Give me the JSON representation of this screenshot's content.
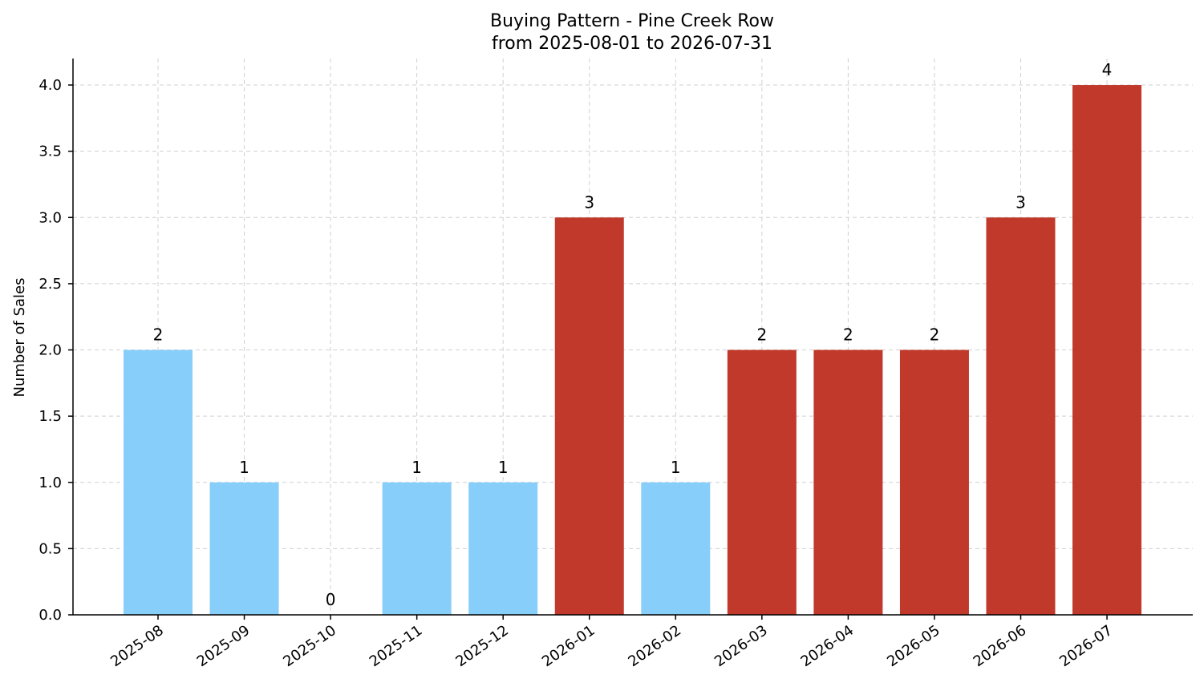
{
  "chart_data": {
    "type": "bar",
    "title": "Buying Pattern - Pine Creek Row",
    "subtitle": "from 2025-08-01 to 2026-07-31",
    "xlabel": "",
    "ylabel": "Number of Sales",
    "categories": [
      "2025-08",
      "2025-09",
      "2025-10",
      "2025-11",
      "2025-12",
      "2026-01",
      "2026-02",
      "2026-03",
      "2026-04",
      "2026-05",
      "2026-06",
      "2026-07"
    ],
    "values": [
      2,
      1,
      0,
      1,
      1,
      3,
      1,
      2,
      2,
      2,
      3,
      4
    ],
    "data_labels": [
      "2",
      "1",
      "0",
      "1",
      "1",
      "3",
      "1",
      "2",
      "2",
      "2",
      "3",
      "4"
    ],
    "bar_colors": [
      "#87CEFA",
      "#87CEFA",
      "#87CEFA",
      "#87CEFA",
      "#87CEFA",
      "#C0392B",
      "#87CEFA",
      "#C0392B",
      "#C0392B",
      "#C0392B",
      "#C0392B",
      "#C0392B"
    ],
    "ylim": [
      0,
      4.2
    ],
    "yticks": [
      0,
      0.5,
      1,
      1.5,
      2,
      2.5,
      3,
      3.5,
      4
    ],
    "ytick_labels": [
      "0.0",
      "0.5",
      "1.0",
      "1.5",
      "2.0",
      "2.5",
      "3.0",
      "3.5",
      "4.0"
    ],
    "grid": true,
    "legend": "none"
  }
}
